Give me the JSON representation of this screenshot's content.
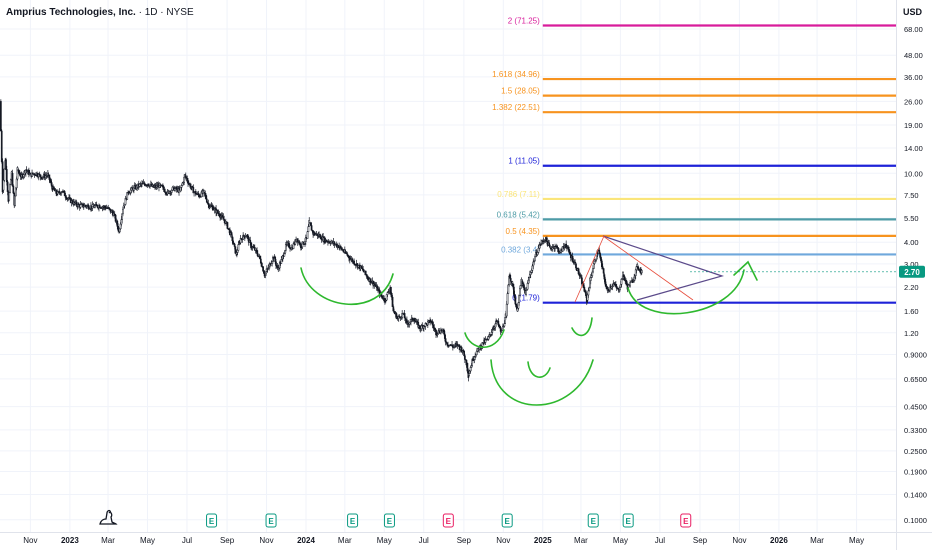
{
  "header": {
    "symbol_name": "Amprius Technologies, Inc.",
    "interval_exchange": " · 1D · NYSE",
    "currency": "USD"
  },
  "chart_data": {
    "type": "candlestick",
    "title": "Amprius Technologies, Inc. · 1D · NYSE",
    "y_scale": "log",
    "ylim": [
      0.085,
      100
    ],
    "x_range": [
      "2022-09-15",
      "2026-07-01"
    ],
    "x_tick_labels": [
      {
        "date": "2022-11-01",
        "label": "Nov",
        "bold": false
      },
      {
        "date": "2023-01-01",
        "label": "2023",
        "bold": true
      },
      {
        "date": "2023-03-01",
        "label": "Mar",
        "bold": false
      },
      {
        "date": "2023-05-01",
        "label": "May",
        "bold": false
      },
      {
        "date": "2023-07-01",
        "label": "Jul",
        "bold": false
      },
      {
        "date": "2023-09-01",
        "label": "Sep",
        "bold": false
      },
      {
        "date": "2023-11-01",
        "label": "Nov",
        "bold": false
      },
      {
        "date": "2024-01-01",
        "label": "2024",
        "bold": true
      },
      {
        "date": "2024-03-01",
        "label": "Mar",
        "bold": false
      },
      {
        "date": "2024-05-01",
        "label": "May",
        "bold": false
      },
      {
        "date": "2024-07-01",
        "label": "Jul",
        "bold": false
      },
      {
        "date": "2024-09-01",
        "label": "Sep",
        "bold": false
      },
      {
        "date": "2024-11-01",
        "label": "Nov",
        "bold": false
      },
      {
        "date": "2025-01-01",
        "label": "2025",
        "bold": true
      },
      {
        "date": "2025-03-01",
        "label": "Mar",
        "bold": false
      },
      {
        "date": "2025-05-01",
        "label": "May",
        "bold": false
      },
      {
        "date": "2025-07-01",
        "label": "Jul",
        "bold": false
      },
      {
        "date": "2025-09-01",
        "label": "Sep",
        "bold": false
      },
      {
        "date": "2025-11-01",
        "label": "Nov",
        "bold": false
      },
      {
        "date": "2026-01-01",
        "label": "2026",
        "bold": true
      },
      {
        "date": "2026-03-01",
        "label": "Mar",
        "bold": false
      },
      {
        "date": "2026-05-01",
        "label": "May",
        "bold": false
      }
    ],
    "y_tick_labels": [
      {
        "value": 68.0,
        "label": "68.00"
      },
      {
        "value": 48.0,
        "label": "48.00"
      },
      {
        "value": 36.0,
        "label": "36.00"
      },
      {
        "value": 26.0,
        "label": "26.00"
      },
      {
        "value": 19.0,
        "label": "19.00"
      },
      {
        "value": 14.0,
        "label": "14.00"
      },
      {
        "value": 10.0,
        "label": "10.00"
      },
      {
        "value": 7.5,
        "label": "7.50"
      },
      {
        "value": 5.5,
        "label": "5.50"
      },
      {
        "value": 4.0,
        "label": "4.00"
      },
      {
        "value": 3.0,
        "label": "3.00"
      },
      {
        "value": 2.2,
        "label": "2.20"
      },
      {
        "value": 1.6,
        "label": "1.60"
      },
      {
        "value": 1.2,
        "label": "1.20"
      },
      {
        "value": 0.9,
        "label": "0.9000"
      },
      {
        "value": 0.65,
        "label": "0.6500"
      },
      {
        "value": 0.45,
        "label": "0.4500"
      },
      {
        "value": 0.33,
        "label": "0.3300"
      },
      {
        "value": 0.25,
        "label": "0.2500"
      },
      {
        "value": 0.19,
        "label": "0.1900"
      },
      {
        "value": 0.14,
        "label": "0.1400"
      },
      {
        "value": 0.1,
        "label": "0.1000"
      }
    ],
    "last_price": {
      "value": 2.7,
      "label": "2.70",
      "color": "#089981"
    },
    "price_path": [
      [
        "2022-09-15",
        26
      ],
      [
        "2022-09-19",
        8
      ],
      [
        "2022-09-23",
        12
      ],
      [
        "2022-09-28",
        7.0
      ],
      [
        "2022-10-03",
        10
      ],
      [
        "2022-10-07",
        6.5
      ],
      [
        "2022-10-12",
        10.5
      ],
      [
        "2022-10-18",
        9.5
      ],
      [
        "2022-10-25",
        10.5
      ],
      [
        "2022-11-01",
        9.8
      ],
      [
        "2022-11-10",
        10
      ],
      [
        "2022-11-18",
        9.5
      ],
      [
        "2022-11-28",
        9.8
      ],
      [
        "2022-12-05",
        8.2
      ],
      [
        "2022-12-12",
        7.6
      ],
      [
        "2022-12-20",
        7.9
      ],
      [
        "2022-12-28",
        7.2
      ],
      [
        "2023-01-05",
        6.8
      ],
      [
        "2023-01-15",
        6.5
      ],
      [
        "2023-01-25",
        6.5
      ],
      [
        "2023-02-05",
        6.4
      ],
      [
        "2023-02-15",
        6.5
      ],
      [
        "2023-02-28",
        6.3
      ],
      [
        "2023-03-10",
        5.8
      ],
      [
        "2023-03-18",
        4.6
      ],
      [
        "2023-03-24",
        6.3
      ],
      [
        "2023-04-01",
        7.8
      ],
      [
        "2023-04-10",
        8.2
      ],
      [
        "2023-04-20",
        8.6
      ],
      [
        "2023-05-01",
        8.7
      ],
      [
        "2023-05-10",
        8.3
      ],
      [
        "2023-05-20",
        8.5
      ],
      [
        "2023-06-01",
        7.7
      ],
      [
        "2023-06-10",
        8.2
      ],
      [
        "2023-06-20",
        7.9
      ],
      [
        "2023-06-28",
        9.7
      ],
      [
        "2023-07-05",
        8.6
      ],
      [
        "2023-07-12",
        7.8
      ],
      [
        "2023-07-20",
        7.4
      ],
      [
        "2023-07-27",
        7.8
      ],
      [
        "2023-08-03",
        6.6
      ],
      [
        "2023-08-10",
        6.3
      ],
      [
        "2023-08-20",
        5.8
      ],
      [
        "2023-08-30",
        5.2
      ],
      [
        "2023-09-08",
        4.3
      ],
      [
        "2023-09-15",
        3.4
      ],
      [
        "2023-09-22",
        4.2
      ],
      [
        "2023-10-01",
        4.4
      ],
      [
        "2023-10-08",
        3.8
      ],
      [
        "2023-10-15",
        3.6
      ],
      [
        "2023-10-22",
        3.2
      ],
      [
        "2023-10-29",
        2.6
      ],
      [
        "2023-11-05",
        2.9
      ],
      [
        "2023-11-12",
        3.3
      ],
      [
        "2023-11-18",
        2.8
      ],
      [
        "2023-11-25",
        3.2
      ],
      [
        "2023-12-02",
        3.9
      ],
      [
        "2023-12-10",
        3.7
      ],
      [
        "2023-12-18",
        4.2
      ],
      [
        "2023-12-24",
        3.8
      ],
      [
        "2024-01-02",
        4.2
      ],
      [
        "2024-01-06",
        5.2
      ],
      [
        "2024-01-12",
        4.5
      ],
      [
        "2024-01-20",
        4.4
      ],
      [
        "2024-01-30",
        4.1
      ],
      [
        "2024-02-10",
        4.0
      ],
      [
        "2024-02-20",
        3.8
      ],
      [
        "2024-03-01",
        3.5
      ],
      [
        "2024-03-10",
        3.2
      ],
      [
        "2024-03-18",
        3.0
      ],
      [
        "2024-03-28",
        2.8
      ],
      [
        "2024-04-05",
        2.5
      ],
      [
        "2024-04-15",
        2.3
      ],
      [
        "2024-04-25",
        2.0
      ],
      [
        "2024-05-02",
        1.85
      ],
      [
        "2024-05-10",
        2.2
      ],
      [
        "2024-05-15",
        1.6
      ],
      [
        "2024-05-22",
        1.45
      ],
      [
        "2024-05-30",
        1.55
      ],
      [
        "2024-06-05",
        1.35
      ],
      [
        "2024-06-15",
        1.45
      ],
      [
        "2024-06-25",
        1.28
      ],
      [
        "2024-07-05",
        1.35
      ],
      [
        "2024-07-12",
        1.4
      ],
      [
        "2024-07-20",
        1.2
      ],
      [
        "2024-07-30",
        1.25
      ],
      [
        "2024-08-05",
        1.05
      ],
      [
        "2024-08-15",
        1.0
      ],
      [
        "2024-08-22",
        1.02
      ],
      [
        "2024-08-30",
        0.95
      ],
      [
        "2024-09-05",
        0.8
      ],
      [
        "2024-09-08",
        0.68
      ],
      [
        "2024-09-15",
        0.85
      ],
      [
        "2024-09-22",
        0.95
      ],
      [
        "2024-10-01",
        1.05
      ],
      [
        "2024-10-08",
        1.1
      ],
      [
        "2024-10-15",
        1.25
      ],
      [
        "2024-10-22",
        1.4
      ],
      [
        "2024-10-29",
        1.2
      ],
      [
        "2024-11-05",
        1.5
      ],
      [
        "2024-11-10",
        2.6
      ],
      [
        "2024-11-15",
        2.3
      ],
      [
        "2024-11-22",
        1.6
      ],
      [
        "2024-11-29",
        2.4
      ],
      [
        "2024-12-05",
        2.0
      ],
      [
        "2024-12-12",
        2.6
      ],
      [
        "2024-12-20",
        3.3
      ],
      [
        "2024-12-28",
        3.9
      ],
      [
        "2025-01-05",
        4.2
      ],
      [
        "2025-01-12",
        3.7
      ],
      [
        "2025-01-20",
        3.8
      ],
      [
        "2025-01-28",
        3.5
      ],
      [
        "2025-02-05",
        3.9
      ],
      [
        "2025-02-12",
        3.4
      ],
      [
        "2025-02-20",
        3.0
      ],
      [
        "2025-02-28",
        2.5
      ],
      [
        "2025-03-05",
        2.2
      ],
      [
        "2025-03-10",
        1.85
      ],
      [
        "2025-03-15",
        2.4
      ],
      [
        "2025-03-22",
        3.1
      ],
      [
        "2025-03-28",
        3.6
      ],
      [
        "2025-04-05",
        2.6
      ],
      [
        "2025-04-10",
        2.1
      ],
      [
        "2025-04-20",
        2.3
      ],
      [
        "2025-04-28",
        2.1
      ],
      [
        "2025-05-05",
        2.6
      ],
      [
        "2025-05-12",
        2.2
      ],
      [
        "2025-05-20",
        2.4
      ],
      [
        "2025-05-27",
        2.9
      ],
      [
        "2025-06-03",
        2.7
      ]
    ],
    "fib_levels": [
      {
        "label": "2 (71.25)",
        "value": 71.25,
        "color": "#d81b9b"
      },
      {
        "label": "1.618 (34.96)",
        "value": 34.96,
        "color": "#f7931e"
      },
      {
        "label": "1.5 (28.05)",
        "value": 28.05,
        "color": "#f7931e"
      },
      {
        "label": "1.382 (22.51)",
        "value": 22.51,
        "color": "#f7931e"
      },
      {
        "label": "1 (11.05)",
        "value": 11.05,
        "color": "#1e22d8"
      },
      {
        "label": "0.786 (7.11)",
        "value": 7.11,
        "color": "#fae57a"
      },
      {
        "label": "0.618 (5.42)",
        "value": 5.42,
        "color": "#4d9ba6"
      },
      {
        "label": "0.5 (4.35)",
        "value": 4.35,
        "color": "#f7931e"
      },
      {
        "label": "0.382 (3.4)",
        "value": 3.4,
        "color": "#6fa8dc"
      },
      {
        "label": "0 (1.79)",
        "value": 1.79,
        "color": "#1e22d8"
      }
    ],
    "fib_range": [
      "2025-01-01",
      "2026-07-01"
    ],
    "earnings_markers": [
      {
        "date": "2023-08-08",
        "label": "E",
        "color": "#089981"
      },
      {
        "date": "2023-11-08",
        "label": "E",
        "color": "#089981"
      },
      {
        "date": "2024-03-13",
        "label": "E",
        "color": "#089981"
      },
      {
        "date": "2024-05-09",
        "label": "E",
        "color": "#089981"
      },
      {
        "date": "2024-08-08",
        "label": "E",
        "color": "#e91e63"
      },
      {
        "date": "2024-11-07",
        "label": "E",
        "color": "#089981"
      },
      {
        "date": "2025-03-20",
        "label": "E",
        "color": "#089981"
      },
      {
        "date": "2025-05-13",
        "label": "E",
        "color": "#089981"
      },
      {
        "date": "2025-08-10",
        "label": "E",
        "color": "#e91e63"
      }
    ],
    "grid": true
  }
}
